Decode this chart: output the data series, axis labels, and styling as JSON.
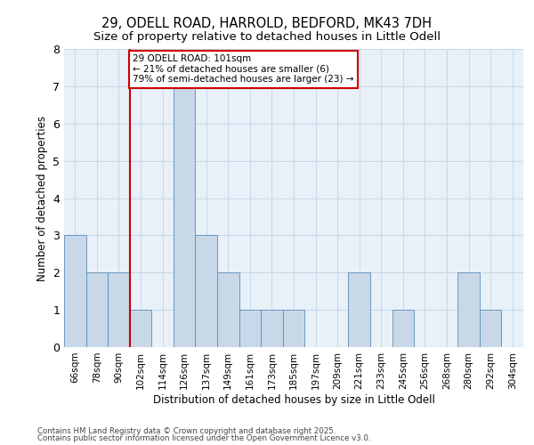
{
  "title1": "29, ODELL ROAD, HARROLD, BEDFORD, MK43 7DH",
  "title2": "Size of property relative to detached houses in Little Odell",
  "xlabel": "Distribution of detached houses by size in Little Odell",
  "ylabel": "Number of detached properties",
  "categories": [
    "66sqm",
    "78sqm",
    "90sqm",
    "102sqm",
    "114sqm",
    "126sqm",
    "137sqm",
    "149sqm",
    "161sqm",
    "173sqm",
    "185sqm",
    "197sqm",
    "209sqm",
    "221sqm",
    "233sqm",
    "245sqm",
    "256sqm",
    "268sqm",
    "280sqm",
    "292sqm",
    "304sqm"
  ],
  "values": [
    3,
    2,
    2,
    1,
    0,
    7,
    3,
    2,
    1,
    1,
    1,
    0,
    0,
    2,
    0,
    1,
    0,
    0,
    2,
    1,
    0
  ],
  "bar_color": "#c8d8e8",
  "bar_edge_color": "#5b8db8",
  "grid_color": "#c8d8e8",
  "background_color": "#e8f0f8",
  "vline_color": "#cc0000",
  "vline_index": 2.5,
  "annotation_text": "29 ODELL ROAD: 101sqm\n← 21% of detached houses are smaller (6)\n79% of semi-detached houses are larger (23) →",
  "annotation_box_facecolor": "#ffffff",
  "annotation_box_edgecolor": "#cc0000",
  "ylim": [
    0,
    8
  ],
  "yticks": [
    0,
    1,
    2,
    3,
    4,
    5,
    6,
    7,
    8
  ],
  "footer1": "Contains HM Land Registry data © Crown copyright and database right 2025.",
  "footer2": "Contains public sector information licensed under the Open Government Licence v3.0."
}
